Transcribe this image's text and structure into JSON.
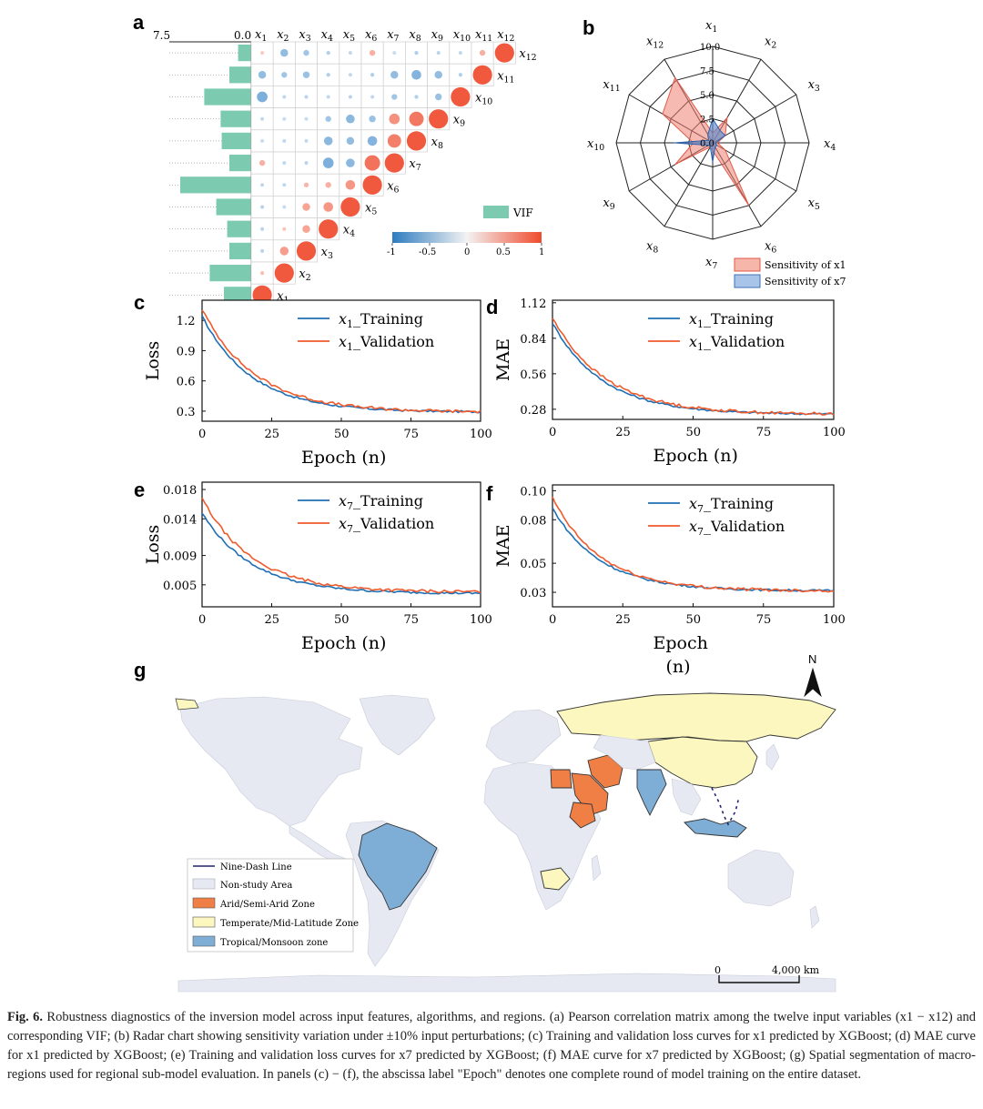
{
  "figure": {
    "panel_labels": {
      "a": "a",
      "b": "b",
      "c": "c",
      "d": "d",
      "e": "e",
      "f": "f",
      "g": "g"
    },
    "caption_label": "Fig. 6.",
    "caption_text": "Robustness diagnostics of the inversion model across input features, algorithms, and regions. (a) Pearson correlation matrix among the twelve input variables (x1 − x12) and corresponding VIF; (b) Radar chart showing sensitivity variation under ±10% input perturbations; (c) Training and validation loss curves for x1 predicted by XGBoost; (d) MAE curve for x1 predicted by XGBoost; (e) Training and validation loss curves for x7 predicted by XGBoost; (f) MAE curve for x7 predicted by XGBoost; (g) Spatial segmentation of macro-regions used for regional sub-model evaluation. In panels (c) − (f), the abscissa label \"Epoch\" denotes one complete round of model training on the entire dataset."
  },
  "colors": {
    "positive": "#f0593e",
    "negative": "#3a86c8",
    "vif": "#7ccbb0",
    "training": "#1f6fb5",
    "validation": "#ef5a2c",
    "radar_x1": "#f4a89b",
    "radar_x7": "#7ea8d8",
    "arid": "#ef7f45",
    "temperate": "#fbf7bf",
    "tropical": "#7eaed6",
    "nonstudy": "#e6e9f2"
  },
  "chart_data": [
    {
      "id": "a",
      "type": "heatmap",
      "title": "Pearson correlation matrix",
      "variables": [
        "x1",
        "x2",
        "x3",
        "x4",
        "x5",
        "x6",
        "x7",
        "x8",
        "x9",
        "x10",
        "x11",
        "x12"
      ],
      "vif_axis_ticks": [
        "7.5",
        "0.0"
      ],
      "vif_legend": "VIF",
      "vif_values": [
        2.5,
        3.8,
        2.0,
        2.2,
        3.2,
        6.5,
        2.0,
        2.7,
        2.8,
        4.3,
        2.0,
        1.2
      ],
      "colorbar_ticks": [
        "-1",
        "-0.5",
        "0",
        "0.5",
        "1"
      ],
      "corr_rows": [
        [
          0.1,
          -0.4,
          -0.3,
          -0.2,
          -0.1,
          0.3,
          -0.05,
          -0.2,
          -0.15,
          -0.1,
          0.3,
          1
        ],
        [
          -0.4,
          -0.3,
          -0.35,
          -0.2,
          -0.1,
          -0.2,
          -0.4,
          -0.5,
          -0.4,
          -0.2,
          1
        ],
        [
          -0.55,
          -0.1,
          -0.15,
          -0.1,
          -0.15,
          -0.1,
          -0.3,
          -0.2,
          -0.35,
          1
        ],
        [
          -0.1,
          -0.05,
          -0.05,
          -0.3,
          -0.45,
          -0.35,
          0.55,
          0.75,
          1
        ],
        [
          -0.05,
          -0.1,
          -0.1,
          -0.45,
          -0.4,
          -0.5,
          0.7,
          1
        ],
        [
          0.3,
          -0.1,
          -0.15,
          -0.55,
          -0.45,
          0.8,
          1
        ],
        [
          -0.1,
          -0.1,
          0.25,
          0.3,
          0.5,
          1
        ],
        [
          -0.15,
          -0.05,
          0.4,
          0.5,
          1
        ],
        [
          -0.15,
          0.15,
          0.4,
          1
        ],
        [
          -0.15,
          0.45,
          1
        ],
        [
          0.2,
          1
        ],
        [
          1
        ]
      ]
    },
    {
      "id": "b",
      "type": "radar",
      "axes": [
        "x1",
        "x2",
        "x3",
        "x4",
        "x5",
        "x6",
        "x7",
        "x8",
        "x9",
        "x10",
        "x11",
        "x12"
      ],
      "ticks": [
        "0.0",
        "2.5",
        "5.0",
        "7.5",
        "10.0"
      ],
      "rmax": 10,
      "series": [
        {
          "name": "Sensitivity of x1",
          "values": [
            1.0,
            3.0,
            1.5,
            0.5,
            1.5,
            7.5,
            0.8,
            0.5,
            4.5,
            2.0,
            6.0,
            7.8
          ]
        },
        {
          "name": "Sensitivity of x7",
          "values": [
            2.5,
            1.5,
            1.5,
            0.3,
            0.5,
            0.5,
            2.0,
            0.5,
            0.5,
            4.0,
            0.5,
            1.0
          ]
        }
      ]
    },
    {
      "id": "c",
      "type": "line",
      "xlabel": "Epoch (n)",
      "ylabel": "Loss",
      "xlim": [
        0,
        100
      ],
      "ylim": [
        0.2,
        1.4
      ],
      "xticks": [
        "0",
        "25",
        "50",
        "75",
        "100"
      ],
      "yticks": [
        "0.3",
        "0.6",
        "0.9",
        "1.2"
      ],
      "series": [
        {
          "name": "x1_Training",
          "start": 1.24,
          "end": 0.29,
          "tau": 18
        },
        {
          "name": "x1_Validation",
          "start": 1.31,
          "end": 0.29,
          "tau": 19
        }
      ]
    },
    {
      "id": "d",
      "type": "line",
      "xlabel": "Epoch (n)",
      "ylabel": "MAE",
      "xlim": [
        0,
        100
      ],
      "ylim": [
        0.2,
        1.14
      ],
      "xticks": [
        "0",
        "25",
        "50",
        "75",
        "100"
      ],
      "yticks": [
        "0.28",
        "0.56",
        "0.84",
        "1.12"
      ],
      "series": [
        {
          "name": "x1_Training",
          "start": 0.96,
          "end": 0.24,
          "tau": 18
        },
        {
          "name": "x1_Validation",
          "start": 1.0,
          "end": 0.24,
          "tau": 19
        }
      ]
    },
    {
      "id": "e",
      "type": "line",
      "xlabel": "Epoch (n)",
      "ylabel": "Loss",
      "xlim": [
        0,
        100
      ],
      "ylim": [
        0.002,
        0.019
      ],
      "xticks": [
        "0",
        "25",
        "50",
        "75",
        "100"
      ],
      "yticks": [
        "0.005",
        "0.009",
        "0.014",
        "0.018"
      ],
      "series": [
        {
          "name": "x7_Training",
          "start": 0.0148,
          "end": 0.0038,
          "tau": 18
        },
        {
          "name": "x7_Validation",
          "start": 0.0168,
          "end": 0.004,
          "tau": 18
        }
      ]
    },
    {
      "id": "f",
      "type": "line",
      "xlabel": "Epoch",
      "xlabel2": "(n)",
      "ylabel": "MAE",
      "xlim": [
        0,
        100
      ],
      "ylim": [
        0.02,
        0.104
      ],
      "xticks": [
        "0",
        "25",
        "50",
        "75",
        "100"
      ],
      "yticks": [
        "0.03",
        "0.05",
        "0.08",
        "0.10"
      ],
      "series": [
        {
          "name": "x7_Training",
          "start": 0.088,
          "end": 0.031,
          "tau": 17
        },
        {
          "name": "x7_Validation",
          "start": 0.095,
          "end": 0.031,
          "tau": 17
        }
      ]
    }
  ],
  "map": {
    "legend": [
      "Nine-Dash Line",
      "Non-study Area",
      "Arid/Semi-Arid Zone",
      "Temperate/Mid-Latitude Zone",
      "Tropical/Monsoon zone"
    ],
    "north": "N",
    "scale_start": "0",
    "scale_end": "4,000 km"
  }
}
